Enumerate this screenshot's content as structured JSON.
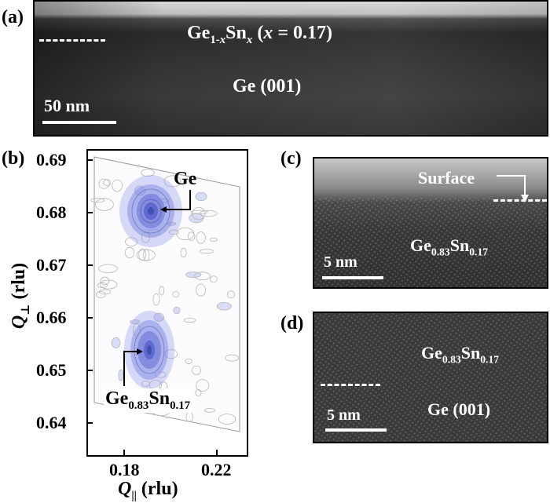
{
  "panels": {
    "a": {
      "label": "(a)",
      "layer": {
        "base": "Ge",
        "sub1": "1-",
        "subx1": "x",
        "mid": "Sn",
        "subx2": "x",
        "paren_open": "(",
        "var": "x",
        "eq": " = 0.17)"
      },
      "substrate": "Ge (001)",
      "scale": "50 nm"
    },
    "b": {
      "label": "(b)",
      "ylabel_main": "Q",
      "ylabel_sub": "⊥",
      "ylabel_unit": "(rlu)",
      "xlabel_main": "Q",
      "xlabel_sub": "||",
      "xlabel_unit": "(rlu)",
      "yticks": [
        "0.69",
        "0.68",
        "0.67",
        "0.66",
        "0.65",
        "0.64"
      ],
      "xticks": [
        "0.18",
        "0.22"
      ],
      "peak_ge": "Ge",
      "peak_alloy": {
        "ge": "Ge",
        "ge_sub": "0.83",
        "sn": "Sn",
        "sn_sub": "0.17"
      }
    },
    "c": {
      "label": "(c)",
      "surface": "Surface",
      "layer": {
        "ge": "Ge",
        "ge_sub": "0.83",
        "sn": "Sn",
        "sn_sub": "0.17"
      },
      "scale": "5 nm"
    },
    "d": {
      "label": "(d)",
      "layer": {
        "ge": "Ge",
        "ge_sub": "0.83",
        "sn": "Sn",
        "sn_sub": "0.17"
      },
      "substrate": "Ge (001)",
      "scale": "5 nm"
    }
  },
  "chart_data": {
    "type": "heatmap",
    "xlabel": "Q|| (rlu)",
    "ylabel": "Q⊥ (rlu)",
    "xlim": [
      0.165,
      0.235
    ],
    "ylim": [
      0.635,
      0.69
    ],
    "xticks": [
      0.18,
      0.22
    ],
    "yticks": [
      0.64,
      0.65,
      0.66,
      0.67,
      0.68,
      0.69
    ],
    "peaks": [
      {
        "label": "Ge",
        "qpar": 0.192,
        "qperp": 0.6795
      },
      {
        "label": "Ge0.83Sn0.17",
        "qpar": 0.192,
        "qperp": 0.651
      }
    ]
  }
}
